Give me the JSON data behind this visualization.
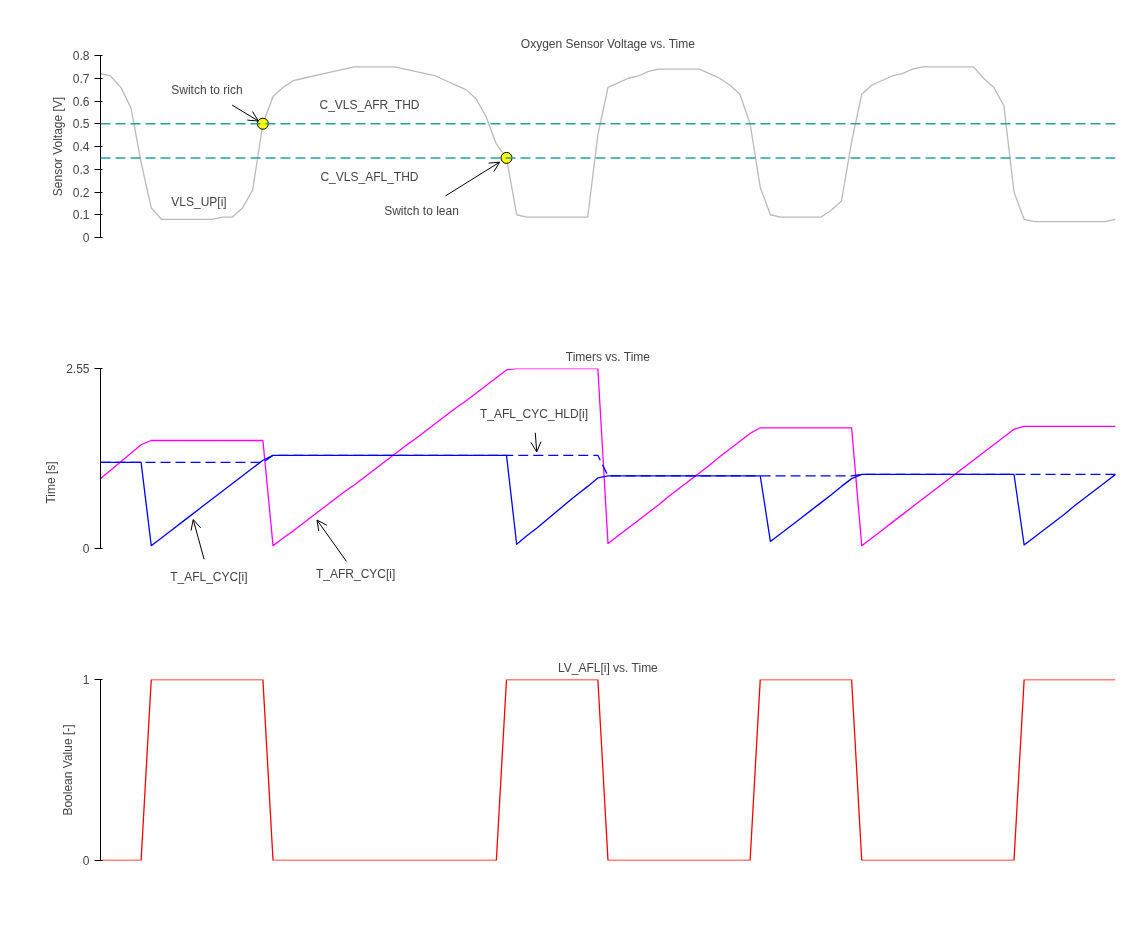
{
  "chart_data": [
    {
      "type": "line",
      "title": "Oxygen Sensor Voltage vs. Time",
      "ylabel": "Sensor Voltage [V]",
      "ylim": [
        0,
        0.8
      ],
      "yticks": [
        0,
        0.1,
        0.2,
        0.3,
        0.4,
        0.5,
        0.6,
        0.7,
        0.8
      ],
      "tick_labels": "y",
      "categories": [
        null,
        null,
        null,
        null,
        null,
        null,
        null,
        null,
        null,
        null,
        null,
        null,
        null,
        null,
        null,
        null,
        null,
        null,
        null,
        null,
        null,
        null,
        null,
        null,
        null,
        null,
        null,
        null,
        null,
        null,
        null,
        null,
        null,
        null,
        null,
        null,
        null,
        null,
        null,
        null,
        null,
        null,
        null,
        null,
        null,
        null,
        null,
        null,
        null,
        null,
        null,
        null,
        null,
        null,
        null,
        null,
        null,
        null,
        null,
        null,
        null,
        null,
        null,
        null,
        null,
        null,
        null,
        null,
        null,
        null,
        null,
        null,
        null,
        null,
        null,
        null,
        null,
        null,
        null,
        null,
        null,
        null,
        null,
        null,
        null,
        null,
        null,
        null,
        null,
        null,
        null,
        null,
        null,
        null,
        null,
        null,
        null,
        null,
        null,
        null,
        null
      ],
      "series": [
        {
          "color": "#bbbbbb",
          "values": [
            0.72,
            0.71,
            0.66,
            0.57,
            0.33,
            0.13,
            0.08,
            0.08,
            0.08,
            0.08,
            0.08,
            0.08,
            0.09,
            0.09,
            0.13,
            0.21,
            0.5,
            0.62,
            0.66,
            0.69,
            0.7,
            0.71,
            0.72,
            0.73,
            0.74,
            0.75,
            0.75,
            0.75,
            0.75,
            0.75,
            0.74,
            0.73,
            0.72,
            0.71,
            0.69,
            0.67,
            0.65,
            0.61,
            0.53,
            0.41,
            0.35,
            0.1,
            0.09,
            0.09,
            0.09,
            0.09,
            0.09,
            0.09,
            0.09,
            0.45,
            0.66,
            0.68,
            0.7,
            0.71,
            0.73,
            0.74,
            0.74,
            0.74,
            0.74,
            0.74,
            0.72,
            0.7,
            0.67,
            0.63,
            0.5,
            0.22,
            0.1,
            0.09,
            0.09,
            0.09,
            0.09,
            0.09,
            0.12,
            0.16,
            0.42,
            0.63,
            0.67,
            0.69,
            0.71,
            0.72,
            0.74,
            0.75,
            0.75,
            0.75,
            0.75,
            0.75,
            0.75,
            0.7,
            0.66,
            0.58,
            0.2,
            0.08,
            0.07,
            0.07,
            0.07,
            0.07,
            0.07,
            0.07,
            0.07,
            0.07,
            0.08
          ]
        },
        {
          "type": "scatter",
          "marker": "circle",
          "color": "#ffff00",
          "values": [
            null,
            null,
            null,
            null,
            null,
            null,
            null,
            null,
            null,
            null,
            null,
            null,
            null,
            null,
            null,
            null,
            0.5,
            null,
            null,
            null,
            null,
            null,
            null,
            null,
            null,
            null,
            null,
            null,
            null,
            null,
            null,
            null,
            null,
            null,
            null,
            null,
            null,
            null,
            null,
            null,
            0.35,
            null,
            null,
            null,
            null,
            null,
            null,
            null,
            null,
            null,
            null,
            null,
            null,
            null,
            null,
            null,
            null,
            null,
            null,
            null,
            null,
            null,
            null,
            null,
            null,
            null,
            null,
            null,
            null,
            null,
            null,
            null,
            null,
            null,
            null,
            null,
            null,
            null,
            null,
            null,
            null,
            null,
            null,
            null,
            null,
            null,
            null,
            null,
            null,
            null,
            null,
            null,
            null,
            null,
            null,
            null,
            null,
            null,
            null,
            null,
            null
          ]
        }
      ],
      "ref_lines": [
        {
          "axis": "y",
          "value": 0.5,
          "label": "C_VLS_AFR_THD",
          "color": "#2aa0a0",
          "line_style": "dashed"
        },
        {
          "axis": "y",
          "value": 0.35,
          "label": "C_VLS_AFL_THD",
          "color": "#2aa0a0",
          "line_style": "dashed"
        }
      ],
      "annotations": [
        {
          "text": "Switch to rich",
          "y": 0.5
        },
        "Switch to lean",
        {
          "text": "VLS_UP[i]",
          "y": 0.08
        }
      ]
    },
    {
      "type": "line",
      "title": "Timers vs. Time",
      "ylabel": "Time [s]",
      "ylim": [
        0,
        2.55
      ],
      "yticks": [
        0,
        2.55
      ],
      "tick_labels": "y",
      "categories": [
        null,
        null,
        null,
        null,
        null,
        null,
        null,
        null,
        null,
        null,
        null,
        null,
        null,
        null,
        null,
        null,
        null,
        null,
        null,
        null,
        null,
        null,
        null,
        null,
        null,
        null,
        null,
        null,
        null,
        null,
        null,
        null,
        null,
        null,
        null,
        null,
        null,
        null,
        null,
        null,
        null,
        null,
        null,
        null,
        null,
        null,
        null,
        null,
        null,
        null,
        null,
        null,
        null,
        null,
        null,
        null,
        null,
        null,
        null,
        null,
        null,
        null,
        null,
        null,
        null,
        null,
        null,
        null,
        null,
        null,
        null,
        null,
        null,
        null,
        null,
        null,
        null,
        null,
        null,
        null,
        null,
        null,
        null,
        null,
        null,
        null,
        null,
        null,
        null,
        null,
        null,
        null,
        null,
        null,
        null,
        null,
        null,
        null,
        null,
        null,
        null
      ],
      "series": [
        {
          "color": "#ff00ff",
          "values": [
            0.99,
            1.11,
            1.23,
            1.35,
            1.47,
            1.53,
            1.53,
            1.53,
            1.53,
            1.53,
            1.53,
            1.53,
            1.53,
            1.53,
            1.53,
            1.53,
            1.53,
            0.04,
            0.15,
            0.25,
            0.36,
            0.47,
            0.58,
            0.69,
            0.8,
            0.9,
            1.01,
            1.12,
            1.23,
            1.34,
            1.45,
            1.55,
            1.66,
            1.77,
            1.88,
            1.99,
            2.09,
            2.2,
            2.31,
            2.42,
            2.53,
            2.55,
            2.55,
            2.55,
            2.55,
            2.55,
            2.55,
            2.55,
            2.55,
            2.55,
            0.07,
            0.18,
            0.29,
            0.4,
            0.51,
            0.62,
            0.74,
            0.85,
            0.96,
            1.07,
            1.18,
            1.3,
            1.41,
            1.52,
            1.63,
            1.71,
            1.71,
            1.71,
            1.71,
            1.71,
            1.71,
            1.71,
            1.71,
            1.71,
            1.71,
            0.04,
            0.15,
            0.26,
            0.37,
            0.48,
            0.59,
            0.7,
            0.81,
            0.92,
            1.03,
            1.14,
            1.25,
            1.36,
            1.47,
            1.58,
            1.69,
            1.73,
            1.73,
            1.73,
            1.73,
            1.73,
            1.73,
            1.73,
            1.73,
            1.73,
            1.73
          ]
        },
        {
          "color": "#0000ff",
          "line_style": "dashed",
          "values": [
            1.22,
            1.22,
            1.22,
            1.22,
            1.22,
            1.22,
            1.22,
            1.22,
            1.22,
            1.22,
            1.22,
            1.22,
            1.22,
            1.22,
            1.22,
            1.22,
            1.22,
            1.32,
            1.32,
            1.32,
            1.32,
            1.32,
            1.32,
            1.32,
            1.32,
            1.32,
            1.32,
            1.32,
            1.32,
            1.32,
            1.32,
            1.32,
            1.32,
            1.32,
            1.32,
            1.32,
            1.32,
            1.32,
            1.32,
            1.32,
            1.32,
            1.32,
            1.32,
            1.32,
            1.32,
            1.32,
            1.32,
            1.32,
            1.32,
            1.32,
            1.03,
            1.03,
            1.03,
            1.03,
            1.03,
            1.03,
            1.03,
            1.03,
            1.03,
            1.03,
            1.03,
            1.03,
            1.03,
            1.03,
            1.03,
            1.03,
            1.03,
            1.03,
            1.03,
            1.03,
            1.03,
            1.03,
            1.03,
            1.03,
            1.03,
            1.05,
            1.05,
            1.05,
            1.05,
            1.05,
            1.05,
            1.05,
            1.05,
            1.05,
            1.05,
            1.05,
            1.05,
            1.05,
            1.05,
            1.05,
            1.05,
            1.05,
            1.05,
            1.05,
            1.05,
            1.05,
            1.05,
            1.05,
            1.05,
            1.05,
            1.05
          ]
        },
        {
          "color": "#0000ff",
          "values": [
            1.22,
            1.22,
            1.22,
            1.22,
            1.22,
            0.04,
            0.15,
            0.26,
            0.37,
            0.48,
            0.59,
            0.7,
            0.81,
            0.92,
            1.03,
            1.14,
            1.25,
            1.32,
            1.32,
            1.32,
            1.32,
            1.32,
            1.32,
            1.32,
            1.32,
            1.32,
            1.32,
            1.32,
            1.32,
            1.32,
            1.32,
            1.32,
            1.32,
            1.32,
            1.32,
            1.32,
            1.32,
            1.32,
            1.32,
            1.32,
            1.32,
            0.06,
            0.18,
            0.29,
            0.41,
            0.53,
            0.65,
            0.77,
            0.88,
            1.0,
            1.03,
            1.03,
            1.03,
            1.03,
            1.03,
            1.03,
            1.03,
            1.03,
            1.03,
            1.03,
            1.03,
            1.03,
            1.03,
            1.03,
            1.03,
            1.03,
            0.1,
            0.21,
            0.32,
            0.43,
            0.54,
            0.65,
            0.76,
            0.88,
            0.99,
            1.05,
            1.05,
            1.05,
            1.05,
            1.05,
            1.05,
            1.05,
            1.05,
            1.05,
            1.05,
            1.05,
            1.05,
            1.05,
            1.05,
            1.05,
            1.05,
            0.05,
            0.16,
            0.27,
            0.38,
            0.49,
            0.61,
            0.72,
            0.83,
            0.94,
            1.05
          ]
        }
      ],
      "annotations": [
        {
          "text": "T_AFL_CYC_HLD[i]",
          "y": 1.32
        },
        "T_AFL_CYC[i]",
        "T_AFR_CYC[i]"
      ]
    },
    {
      "type": "line",
      "title": "LV_AFL[i] vs. Time",
      "ylabel": "Boolean Value [-]",
      "ylim": [
        0,
        1
      ],
      "yticks": [
        0,
        1
      ],
      "tick_labels": "y",
      "categories": [
        null,
        null,
        null,
        null,
        null,
        null,
        null,
        null,
        null,
        null,
        null,
        null,
        null,
        null,
        null,
        null,
        null,
        null,
        null,
        null,
        null,
        null,
        null,
        null,
        null,
        null,
        null,
        null,
        null,
        null,
        null,
        null,
        null,
        null,
        null,
        null,
        null,
        null,
        null,
        null,
        null,
        null,
        null,
        null,
        null,
        null,
        null,
        null,
        null,
        null,
        null,
        null,
        null,
        null,
        null,
        null,
        null,
        null,
        null,
        null,
        null,
        null,
        null,
        null,
        null,
        null,
        null,
        null,
        null,
        null,
        null,
        null,
        null,
        null,
        null,
        null,
        null,
        null,
        null,
        null,
        null,
        null,
        null,
        null,
        null,
        null,
        null,
        null,
        null,
        null,
        null,
        null,
        null,
        null,
        null,
        null,
        null,
        null,
        null,
        null,
        null
      ],
      "series": [
        {
          "color": "#ff0000",
          "values": [
            0,
            0,
            0,
            0,
            0,
            1,
            1,
            1,
            1,
            1,
            1,
            1,
            1,
            1,
            1,
            1,
            1,
            0,
            0,
            0,
            0,
            0,
            0,
            0,
            0,
            0,
            0,
            0,
            0,
            0,
            0,
            0,
            0,
            0,
            0,
            0,
            0,
            0,
            0,
            0,
            1,
            1,
            1,
            1,
            1,
            1,
            1,
            1,
            1,
            1,
            0,
            0,
            0,
            0,
            0,
            0,
            0,
            0,
            0,
            0,
            0,
            0,
            0,
            0,
            0,
            1,
            1,
            1,
            1,
            1,
            1,
            1,
            1,
            1,
            1,
            0,
            0,
            0,
            0,
            0,
            0,
            0,
            0,
            0,
            0,
            0,
            0,
            0,
            0,
            0,
            0,
            1,
            1,
            1,
            1,
            1,
            1,
            1,
            1,
            1,
            1
          ]
        }
      ]
    }
  ]
}
